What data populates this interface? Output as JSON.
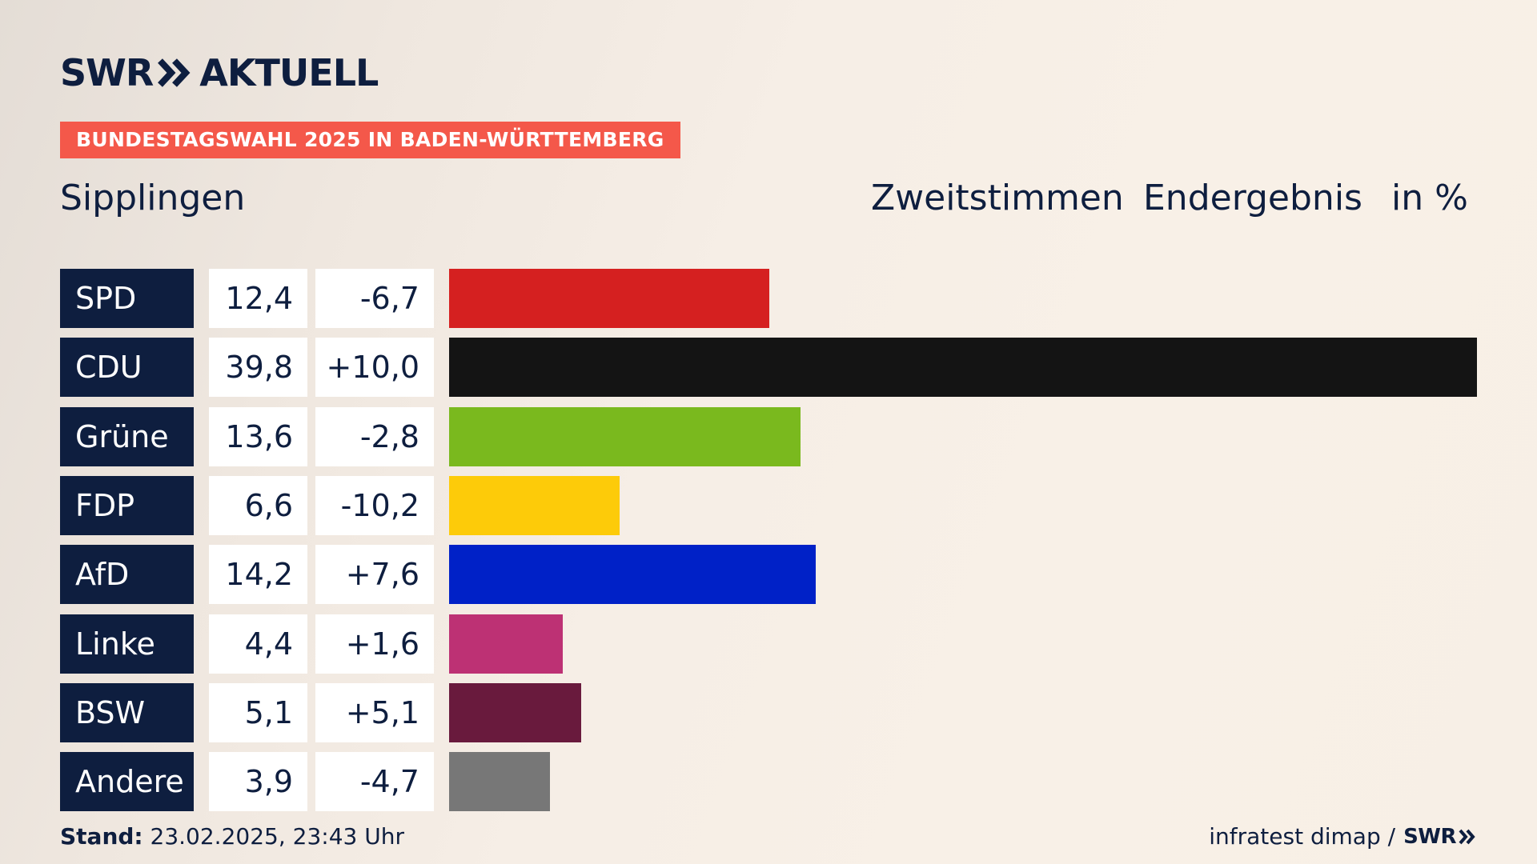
{
  "logo": {
    "left_text": "SWR",
    "right_text": "AKTUELL"
  },
  "banner": "BUNDESTAGSWAHL 2025 IN BADEN-WÜRTTEMBERG",
  "header": {
    "place": "Sipplingen",
    "stimmen": "Zweitstimmen",
    "ergebnis": "Endergebnis",
    "unit": "in %"
  },
  "chart_data": {
    "type": "bar",
    "orientation": "horizontal",
    "categories": [
      "SPD",
      "CDU",
      "Grüne",
      "FDP",
      "AfD",
      "Linke",
      "BSW",
      "Andere"
    ],
    "values": [
      12.4,
      39.8,
      13.6,
      6.6,
      14.2,
      4.4,
      5.1,
      3.9
    ],
    "value_labels": [
      "12,4",
      "39,8",
      "13,6",
      "6,6",
      "14,2",
      "4,4",
      "5,1",
      "3,9"
    ],
    "diff_labels": [
      "-6,7",
      "+10,0",
      "-2,8",
      "-10,2",
      "+7,6",
      "+1,6",
      "+5,1",
      "-4,7"
    ],
    "colors": [
      "#d52020",
      "#141414",
      "#7ab91e",
      "#fdcb09",
      "#0021c7",
      "#bd3174",
      "#691a3d",
      "#777777"
    ],
    "xlim": [
      0,
      39.8
    ]
  },
  "footer": {
    "stand_label": "Stand:",
    "stand_value": " 23.02.2025, 23:43 Uhr",
    "source": "infratest dimap /",
    "source_logo": "SWR"
  }
}
